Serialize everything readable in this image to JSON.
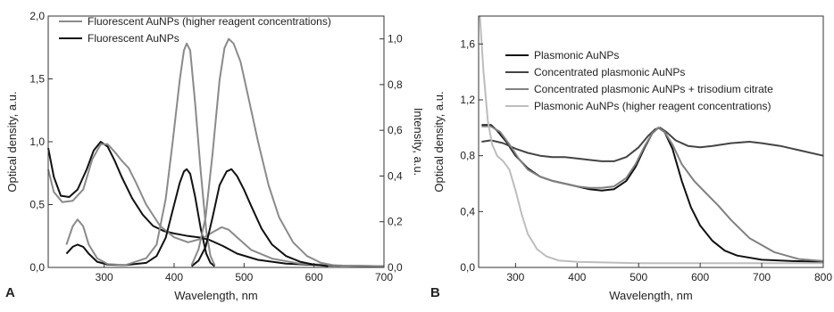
{
  "chart_data": [
    {
      "panel": "A",
      "type": "line",
      "title": "",
      "xlabel": "Wavelength, nm",
      "ylabel": "Optical density, a.u.",
      "y2label": "Intensity, a.u.",
      "xlim": [
        220,
        700
      ],
      "ylim": [
        0,
        2.0
      ],
      "y2lim": [
        0,
        1.1
      ],
      "xticks": [
        300,
        400,
        500,
        600,
        700
      ],
      "xtick_labels": [
        "300",
        "400",
        "500",
        "600",
        "700"
      ],
      "yticks": [
        0,
        0.5,
        1.0,
        1.5,
        2.0
      ],
      "ytick_labels": [
        "0,0",
        "0,5",
        "1,0",
        "1,5",
        "2,0"
      ],
      "y2ticks": [
        0,
        0.2,
        0.4,
        0.6,
        0.8,
        1.0
      ],
      "y2tick_labels": [
        "0,0",
        "0,2",
        "0,4",
        "0,6",
        "0,8",
        "1,0"
      ],
      "grid": false,
      "legend": {
        "position": "top",
        "entries": [
          {
            "label": "Fluorescent AuNPs (higher reagent concentrations)",
            "color": "#8a8a8a"
          },
          {
            "label": "Fluorescent AuNPs",
            "color": "#111111"
          }
        ]
      },
      "series": [
        {
          "color": "#111111",
          "axis": "left",
          "points": [
            [
              220,
              0.95
            ],
            [
              228,
              0.72
            ],
            [
              238,
              0.57
            ],
            [
              250,
              0.56
            ],
            [
              262,
              0.62
            ],
            [
              275,
              0.78
            ],
            [
              285,
              0.93
            ],
            [
              295,
              1.0
            ],
            [
              305,
              0.96
            ],
            [
              315,
              0.85
            ],
            [
              325,
              0.72
            ],
            [
              340,
              0.55
            ],
            [
              355,
              0.42
            ],
            [
              370,
              0.33
            ],
            [
              385,
              0.29
            ],
            [
              400,
              0.27
            ],
            [
              410,
              0.26
            ],
            [
              420,
              0.25
            ],
            [
              435,
              0.24
            ],
            [
              450,
              0.22
            ],
            [
              470,
              0.17
            ],
            [
              490,
              0.11
            ],
            [
              520,
              0.06
            ],
            [
              560,
              0.03
            ],
            [
              620,
              0.015
            ],
            [
              700,
              0.01
            ]
          ]
        },
        {
          "color": "#8a8a8a",
          "axis": "left",
          "points": [
            [
              220,
              0.78
            ],
            [
              228,
              0.6
            ],
            [
              240,
              0.52
            ],
            [
              255,
              0.53
            ],
            [
              270,
              0.62
            ],
            [
              283,
              0.86
            ],
            [
              295,
              0.98
            ],
            [
              305,
              0.98
            ],
            [
              315,
              0.92
            ],
            [
              325,
              0.85
            ],
            [
              335,
              0.79
            ],
            [
              345,
              0.68
            ],
            [
              360,
              0.5
            ],
            [
              380,
              0.33
            ],
            [
              400,
              0.24
            ],
            [
              420,
              0.2
            ],
            [
              440,
              0.23
            ],
            [
              455,
              0.28
            ],
            [
              468,
              0.32
            ],
            [
              478,
              0.3
            ],
            [
              490,
              0.24
            ],
            [
              510,
              0.14
            ],
            [
              540,
              0.07
            ],
            [
              580,
              0.03
            ],
            [
              640,
              0.015
            ],
            [
              700,
              0.01
            ]
          ]
        },
        {
          "color": "#111111",
          "axis": "right",
          "points": [
            [
              246,
              0.06
            ],
            [
              255,
              0.09
            ],
            [
              262,
              0.1
            ],
            [
              270,
              0.09
            ],
            [
              278,
              0.06
            ],
            [
              290,
              0.025
            ],
            [
              305,
              0.012
            ],
            [
              330,
              0.01
            ],
            [
              360,
              0.02
            ],
            [
              375,
              0.05
            ],
            [
              388,
              0.13
            ],
            [
              398,
              0.25
            ],
            [
              408,
              0.37
            ],
            [
              414,
              0.42
            ],
            [
              418,
              0.43
            ],
            [
              423,
              0.41
            ],
            [
              430,
              0.31
            ],
            [
              438,
              0.17
            ],
            [
              446,
              0.06
            ],
            [
              452,
              0.02
            ],
            [
              458,
              0.005
            ]
          ]
        },
        {
          "color": "#8a8a8a",
          "axis": "right",
          "points": [
            [
              246,
              0.1
            ],
            [
              255,
              0.18
            ],
            [
              262,
              0.21
            ],
            [
              270,
              0.18
            ],
            [
              278,
              0.1
            ],
            [
              290,
              0.04
            ],
            [
              305,
              0.015
            ],
            [
              330,
              0.01
            ],
            [
              360,
              0.04
            ],
            [
              375,
              0.1
            ],
            [
              388,
              0.3
            ],
            [
              398,
              0.55
            ],
            [
              408,
              0.82
            ],
            [
              414,
              0.95
            ],
            [
              418,
              0.98
            ],
            [
              423,
              0.95
            ],
            [
              430,
              0.72
            ],
            [
              438,
              0.42
            ],
            [
              446,
              0.16
            ],
            [
              452,
              0.05
            ],
            [
              458,
              0.01
            ]
          ]
        },
        {
          "color": "#111111",
          "axis": "right",
          "points": [
            [
              425,
              0.005
            ],
            [
              435,
              0.03
            ],
            [
              445,
              0.09
            ],
            [
              455,
              0.22
            ],
            [
              465,
              0.36
            ],
            [
              475,
              0.42
            ],
            [
              482,
              0.43
            ],
            [
              490,
              0.4
            ],
            [
              500,
              0.34
            ],
            [
              510,
              0.27
            ],
            [
              525,
              0.17
            ],
            [
              540,
              0.1
            ],
            [
              560,
              0.05
            ],
            [
              580,
              0.025
            ],
            [
              600,
              0.012
            ],
            [
              620,
              0.006
            ]
          ]
        },
        {
          "color": "#8a8a8a",
          "axis": "right",
          "points": [
            [
              425,
              0.01
            ],
            [
              435,
              0.08
            ],
            [
              445,
              0.22
            ],
            [
              455,
              0.5
            ],
            [
              465,
              0.82
            ],
            [
              472,
              0.96
            ],
            [
              478,
              1.0
            ],
            [
              485,
              0.98
            ],
            [
              495,
              0.9
            ],
            [
              505,
              0.76
            ],
            [
              520,
              0.55
            ],
            [
              535,
              0.36
            ],
            [
              550,
              0.22
            ],
            [
              570,
              0.11
            ],
            [
              590,
              0.05
            ],
            [
              610,
              0.02
            ],
            [
              630,
              0.008
            ]
          ]
        }
      ]
    },
    {
      "panel": "B",
      "type": "line",
      "title": "",
      "xlabel": "Wavelength, nm",
      "ylabel": "Optical density, a.u.",
      "xlim": [
        240,
        800
      ],
      "ylim": [
        0,
        1.8
      ],
      "xticks": [
        300,
        400,
        500,
        600,
        700,
        800
      ],
      "xtick_labels": [
        "300",
        "400",
        "500",
        "600",
        "700",
        "800"
      ],
      "yticks": [
        0,
        0.4,
        0.8,
        1.2,
        1.6
      ],
      "ytick_labels": [
        "0,0",
        "0,4",
        "0,8",
        "1,2",
        "1,6"
      ],
      "grid": false,
      "legend": {
        "position": "top",
        "entries": [
          {
            "label": "Plasmonic AuNPs",
            "color": "#111111"
          },
          {
            "label": "Concentrated plasmonic AuNPs",
            "color": "#444444"
          },
          {
            "label": "Concentrated plasmonic AuNPs + trisodium citrate",
            "color": "#808080"
          },
          {
            "label": "Plasmonic AuNPs (higher reagent concentrations)",
            "color": "#bdbdbd"
          }
        ]
      },
      "series": [
        {
          "color": "#111111",
          "points": [
            [
              245,
              1.02
            ],
            [
              260,
              1.02
            ],
            [
              270,
              0.98
            ],
            [
              285,
              0.9
            ],
            [
              300,
              0.8
            ],
            [
              320,
              0.71
            ],
            [
              340,
              0.65
            ],
            [
              360,
              0.62
            ],
            [
              380,
              0.6
            ],
            [
              400,
              0.58
            ],
            [
              420,
              0.56
            ],
            [
              440,
              0.55
            ],
            [
              460,
              0.56
            ],
            [
              480,
              0.62
            ],
            [
              495,
              0.72
            ],
            [
              510,
              0.86
            ],
            [
              522,
              0.96
            ],
            [
              532,
              1.0
            ],
            [
              542,
              0.97
            ],
            [
              555,
              0.85
            ],
            [
              570,
              0.62
            ],
            [
              585,
              0.43
            ],
            [
              600,
              0.3
            ],
            [
              620,
              0.19
            ],
            [
              640,
              0.12
            ],
            [
              660,
              0.085
            ],
            [
              700,
              0.055
            ],
            [
              750,
              0.045
            ],
            [
              800,
              0.04
            ]
          ]
        },
        {
          "color": "#444444",
          "points": [
            [
              245,
              0.9
            ],
            [
              260,
              0.91
            ],
            [
              280,
              0.89
            ],
            [
              300,
              0.85
            ],
            [
              320,
              0.82
            ],
            [
              340,
              0.8
            ],
            [
              360,
              0.79
            ],
            [
              380,
              0.79
            ],
            [
              400,
              0.78
            ],
            [
              420,
              0.77
            ],
            [
              440,
              0.76
            ],
            [
              460,
              0.76
            ],
            [
              480,
              0.79
            ],
            [
              500,
              0.86
            ],
            [
              515,
              0.94
            ],
            [
              527,
              0.99
            ],
            [
              535,
              1.0
            ],
            [
              545,
              0.97
            ],
            [
              560,
              0.91
            ],
            [
              580,
              0.87
            ],
            [
              600,
              0.86
            ],
            [
              620,
              0.87
            ],
            [
              650,
              0.89
            ],
            [
              680,
              0.9
            ],
            [
              700,
              0.89
            ],
            [
              730,
              0.87
            ],
            [
              760,
              0.84
            ],
            [
              800,
              0.8
            ]
          ]
        },
        {
          "color": "#808080",
          "points": [
            [
              245,
              1.01
            ],
            [
              260,
              1.01
            ],
            [
              275,
              0.97
            ],
            [
              290,
              0.88
            ],
            [
              305,
              0.78
            ],
            [
              320,
              0.7
            ],
            [
              340,
              0.65
            ],
            [
              360,
              0.62
            ],
            [
              380,
              0.6
            ],
            [
              400,
              0.58
            ],
            [
              420,
              0.57
            ],
            [
              440,
              0.57
            ],
            [
              460,
              0.58
            ],
            [
              480,
              0.64
            ],
            [
              495,
              0.74
            ],
            [
              510,
              0.87
            ],
            [
              522,
              0.96
            ],
            [
              532,
              1.0
            ],
            [
              542,
              0.97
            ],
            [
              555,
              0.88
            ],
            [
              570,
              0.74
            ],
            [
              590,
              0.62
            ],
            [
              610,
              0.53
            ],
            [
              630,
              0.44
            ],
            [
              650,
              0.34
            ],
            [
              680,
              0.21
            ],
            [
              720,
              0.11
            ],
            [
              760,
              0.06
            ],
            [
              800,
              0.045
            ]
          ]
        },
        {
          "color": "#bdbdbd",
          "points": [
            [
              242,
              1.8
            ],
            [
              248,
              1.4
            ],
            [
              255,
              1.05
            ],
            [
              262,
              0.88
            ],
            [
              270,
              0.8
            ],
            [
              280,
              0.76
            ],
            [
              290,
              0.7
            ],
            [
              300,
              0.55
            ],
            [
              310,
              0.38
            ],
            [
              320,
              0.24
            ],
            [
              335,
              0.13
            ],
            [
              350,
              0.08
            ],
            [
              370,
              0.05
            ],
            [
              400,
              0.04
            ],
            [
              450,
              0.035
            ],
            [
              500,
              0.03
            ],
            [
              560,
              0.03
            ],
            [
              650,
              0.03
            ],
            [
              800,
              0.03
            ]
          ]
        }
      ]
    }
  ],
  "panel_labels": {
    "a": "A",
    "b": "B"
  }
}
